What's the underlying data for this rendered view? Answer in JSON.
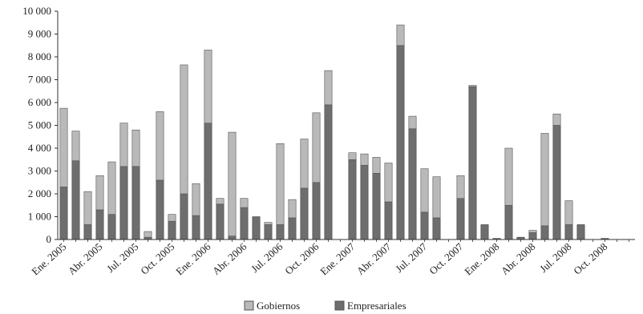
{
  "chart_data": {
    "type": "bar",
    "stacked": true,
    "title": "",
    "xlabel": "",
    "ylabel": "",
    "ylim": [
      0,
      10000
    ],
    "yticks": [
      "0",
      "1 000",
      "2 000",
      "3 000",
      "4 000",
      "5 000",
      "6 000",
      "7 000",
      "8 000",
      "9 000",
      "10 000"
    ],
    "yticks_values": [
      0,
      1000,
      2000,
      3000,
      4000,
      5000,
      6000,
      7000,
      8000,
      9000,
      10000
    ],
    "grid": false,
    "legend_position": "bottom",
    "categories": [
      "Ene. 2005",
      "Feb. 2005",
      "Mar. 2005",
      "Abr. 2005",
      "May. 2005",
      "Jun. 2005",
      "Jul. 2005",
      "Ago. 2005",
      "Sep. 2005",
      "Oct. 2005",
      "Nov. 2005",
      "Dic. 2005",
      "Ene. 2006",
      "Feb. 2006",
      "Mar. 2006",
      "Abr. 2006",
      "May. 2006",
      "Jun. 2006",
      "Jul. 2006",
      "Ago. 2006",
      "Sep. 2006",
      "Oct. 2006",
      "Nov. 2006",
      "Dic. 2006",
      "Ene. 2007",
      "Feb. 2007",
      "Mar. 2007",
      "Abr. 2007",
      "May. 2007",
      "Jun. 2007",
      "Jul. 2007",
      "Ago. 2007",
      "Sep. 2007",
      "Oct. 2007",
      "Nov. 2007",
      "Dic. 2007",
      "Ene. 2008",
      "Feb. 2008",
      "Mar. 2008",
      "Abr. 2008",
      "May. 2008",
      "Jun. 2008",
      "Jul. 2008",
      "Ago. 2008",
      "Sep. 2008",
      "Oct. 2008",
      "Nov. 2008",
      "Dic. 2008"
    ],
    "x_tick_labels_shown": [
      "Ene. 2005",
      "Abr. 2005",
      "Jul. 2005",
      "Oct. 2005",
      "Ene. 2006",
      "Abr. 2006",
      "Jul. 2006",
      "Oct. 2006",
      "Ene. 2007",
      "Abr. 2007",
      "Jul. 2007",
      "Oct. 2007",
      "Ene. 2008",
      "Abr. 2008",
      "Jul. 2008",
      "Oct. 2008"
    ],
    "series": [
      {
        "name": "Empresariales",
        "color": "#6e6e6e",
        "values": [
          2300,
          3450,
          650,
          1300,
          1100,
          3200,
          3200,
          100,
          2600,
          800,
          2000,
          1050,
          5100,
          1550,
          150,
          1400,
          1000,
          650,
          650,
          950,
          2250,
          2500,
          5900,
          0,
          3500,
          3250,
          2900,
          1650,
          8500,
          4850,
          1200,
          950,
          0,
          1800,
          6700,
          650,
          50,
          1500,
          100,
          300,
          600,
          5000,
          650,
          650,
          0,
          50,
          0,
          0
        ]
      },
      {
        "name": "Gobiernos",
        "color": "#b9b9b9",
        "values": [
          3450,
          1300,
          1450,
          1500,
          2300,
          1900,
          1600,
          250,
          3000,
          300,
          5650,
          1400,
          3200,
          250,
          4550,
          400,
          0,
          100,
          3550,
          800,
          2150,
          3050,
          1500,
          0,
          300,
          500,
          700,
          1700,
          900,
          550,
          1900,
          1800,
          0,
          1000,
          50,
          0,
          0,
          2500,
          0,
          100,
          4050,
          500,
          1050,
          0,
          0,
          0,
          0,
          0
        ]
      }
    ]
  }
}
